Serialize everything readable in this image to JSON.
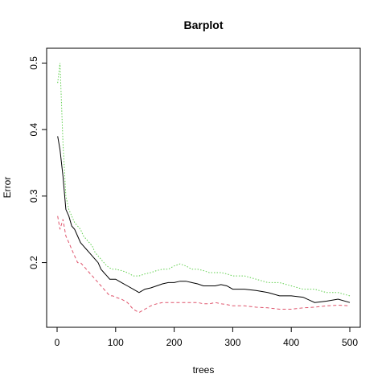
{
  "chart_data": {
    "type": "line",
    "title": "Barplot",
    "xlabel": "trees",
    "ylabel": "Error",
    "xlim": [
      0,
      500
    ],
    "ylim": [
      0.11,
      0.515
    ],
    "xticks": [
      0,
      100,
      200,
      300,
      400,
      500
    ],
    "yticks": [
      0.2,
      0.3,
      0.4,
      0.5
    ],
    "grid": false,
    "legend": "none",
    "series": [
      {
        "color": "#000000",
        "dash": "solid",
        "x": [
          1,
          5,
          10,
          15,
          20,
          25,
          30,
          35,
          40,
          45,
          50,
          55,
          60,
          65,
          70,
          75,
          80,
          85,
          90,
          95,
          100,
          110,
          120,
          130,
          140,
          150,
          160,
          170,
          180,
          190,
          200,
          210,
          220,
          230,
          240,
          250,
          260,
          270,
          280,
          290,
          300,
          320,
          340,
          360,
          380,
          400,
          420,
          440,
          460,
          480,
          500
        ],
        "y": [
          0.39,
          0.37,
          0.33,
          0.28,
          0.27,
          0.255,
          0.25,
          0.24,
          0.23,
          0.225,
          0.22,
          0.215,
          0.21,
          0.205,
          0.2,
          0.19,
          0.185,
          0.18,
          0.175,
          0.175,
          0.175,
          0.17,
          0.165,
          0.16,
          0.155,
          0.16,
          0.162,
          0.165,
          0.168,
          0.17,
          0.17,
          0.172,
          0.172,
          0.17,
          0.168,
          0.165,
          0.165,
          0.165,
          0.167,
          0.165,
          0.16,
          0.16,
          0.158,
          0.155,
          0.15,
          0.15,
          0.148,
          0.14,
          0.142,
          0.145,
          0.14
        ]
      },
      {
        "color": "#DF536B",
        "dash": "dashed",
        "x": [
          1,
          5,
          10,
          15,
          20,
          25,
          30,
          35,
          40,
          45,
          50,
          55,
          60,
          65,
          70,
          75,
          80,
          85,
          90,
          95,
          100,
          110,
          120,
          130,
          140,
          150,
          160,
          170,
          180,
          190,
          200,
          210,
          220,
          230,
          240,
          250,
          260,
          270,
          280,
          290,
          300,
          320,
          340,
          360,
          380,
          400,
          420,
          440,
          460,
          480,
          500
        ],
        "y": [
          0.27,
          0.25,
          0.265,
          0.24,
          0.23,
          0.22,
          0.21,
          0.2,
          0.2,
          0.195,
          0.19,
          0.185,
          0.18,
          0.175,
          0.17,
          0.165,
          0.16,
          0.155,
          0.15,
          0.15,
          0.148,
          0.145,
          0.14,
          0.13,
          0.125,
          0.13,
          0.135,
          0.138,
          0.14,
          0.14,
          0.14,
          0.14,
          0.14,
          0.14,
          0.14,
          0.138,
          0.138,
          0.14,
          0.138,
          0.137,
          0.135,
          0.135,
          0.133,
          0.132,
          0.13,
          0.13,
          0.132,
          0.133,
          0.135,
          0.136,
          0.135
        ]
      },
      {
        "color": "#61D04F",
        "dash": "dotted",
        "x": [
          1,
          5,
          10,
          15,
          20,
          25,
          30,
          35,
          40,
          45,
          50,
          55,
          60,
          65,
          70,
          75,
          80,
          85,
          90,
          95,
          100,
          110,
          120,
          130,
          140,
          150,
          160,
          170,
          180,
          190,
          200,
          210,
          220,
          230,
          240,
          250,
          260,
          270,
          280,
          290,
          300,
          320,
          340,
          360,
          380,
          400,
          420,
          440,
          460,
          480,
          500
        ],
        "y": [
          0.47,
          0.5,
          0.38,
          0.3,
          0.28,
          0.27,
          0.26,
          0.255,
          0.25,
          0.24,
          0.235,
          0.23,
          0.225,
          0.215,
          0.21,
          0.205,
          0.2,
          0.195,
          0.192,
          0.19,
          0.19,
          0.188,
          0.185,
          0.18,
          0.18,
          0.183,
          0.185,
          0.188,
          0.19,
          0.19,
          0.195,
          0.198,
          0.195,
          0.19,
          0.19,
          0.188,
          0.185,
          0.185,
          0.185,
          0.183,
          0.18,
          0.18,
          0.175,
          0.17,
          0.17,
          0.165,
          0.16,
          0.16,
          0.155,
          0.155,
          0.15
        ]
      }
    ]
  }
}
